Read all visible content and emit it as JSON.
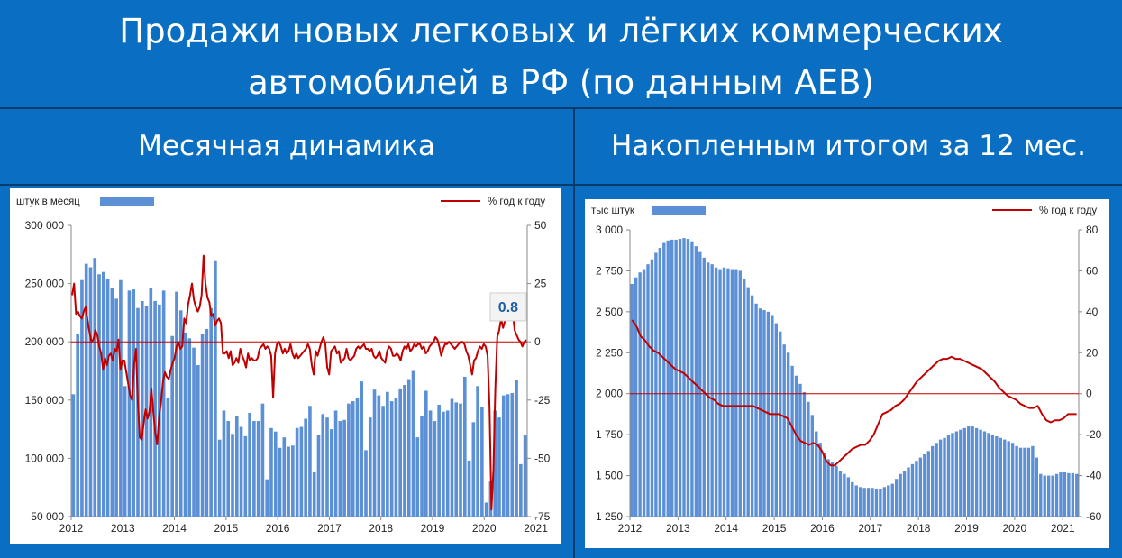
{
  "title": {
    "line1": "Продажи новых легковых и лёгких коммерческих",
    "line2": "автомобилей в РФ (по данным АЕВ)"
  },
  "left_subtitle": "Месячная динамика",
  "right_subtitle": "Накопленным итогом за 12 мес.",
  "colors": {
    "background": "#0a6fc2",
    "bar": "#5b8fd6",
    "line": "#c00000",
    "callout_text": "#1f5f9f"
  },
  "chart_data": [
    {
      "type": "bar",
      "bar_legend": "штук в месяц",
      "line_legend": "% год к году",
      "y_ticks": [
        "300 000",
        "250 000",
        "200 000",
        "150 000",
        "100 000",
        "50 000"
      ],
      "y2_ticks": [
        "50",
        "25",
        "0",
        "-25",
        "-50",
        "-75"
      ],
      "x_ticks": [
        "2012",
        "2013",
        "2014",
        "2015",
        "2016",
        "2017",
        "2018",
        "2019",
        "2020",
        "2021"
      ],
      "ylim": [
        50000,
        300000
      ],
      "y2lim": [
        -75,
        50
      ],
      "callout": "0.8",
      "bars": [
        155000,
        207000,
        253000,
        267000,
        264000,
        272000,
        258000,
        260000,
        254000,
        246000,
        237000,
        253000,
        162000,
        244000,
        245000,
        229000,
        235000,
        231000,
        246000,
        235000,
        232000,
        244000,
        152000,
        205000,
        243000,
        227000,
        208000,
        203000,
        195000,
        180000,
        207000,
        211000,
        229000,
        270000,
        116000,
        141000,
        132000,
        121000,
        136000,
        127000,
        119000,
        139000,
        132000,
        132000,
        147000,
        82000,
        126000,
        123000,
        109000,
        118000,
        110000,
        111000,
        126000,
        127000,
        134000,
        145000,
        88000,
        120000,
        138000,
        135000,
        125000,
        141000,
        132000,
        133000,
        147000,
        149000,
        152000,
        166000,
        107000,
        135000,
        159000,
        154000,
        145000,
        157000,
        149000,
        152000,
        160000,
        163000,
        168000,
        175000,
        118000,
        136000,
        158000,
        141000,
        132000,
        146000,
        140000,
        141000,
        151000,
        148000,
        147000,
        170000,
        98000,
        131000,
        162000,
        144000,
        62000,
        80000,
        141000,
        135000,
        154000,
        155000,
        156000,
        167000,
        95000,
        120000
      ],
      "line": [
        20,
        25,
        12,
        13,
        11,
        10,
        13,
        15,
        9,
        4,
        0,
        1,
        5,
        3,
        -2,
        -5,
        -12,
        -7,
        -10,
        -6,
        -5,
        -8,
        -3,
        -4,
        1,
        -12,
        -8,
        -8,
        -13,
        -18,
        -23,
        -25,
        -10,
        -3,
        -26,
        -41,
        -42,
        -35,
        -29,
        -33,
        -30,
        -20,
        -30,
        -39,
        -44,
        -32,
        -26,
        -17,
        -13,
        -15,
        -16,
        -12,
        -9,
        -7,
        -2,
        0,
        -3,
        -2,
        10,
        8,
        16,
        20,
        25,
        18,
        15,
        13,
        15,
        20,
        37,
        25,
        19,
        17,
        11,
        12,
        7,
        9,
        10,
        8,
        -5,
        -5,
        -4,
        -7,
        -4,
        -10,
        -9,
        -7,
        -9,
        -3,
        -6,
        -8,
        -11,
        -5,
        -8,
        -7,
        -8,
        -8,
        -7,
        -3,
        -2,
        -1,
        -3,
        -2,
        -3,
        -6,
        -24,
        -5,
        -1,
        0,
        -2,
        -5,
        -3,
        -5,
        -4,
        -1,
        -5,
        -7,
        -5,
        -7,
        -6,
        -5,
        -4,
        -3,
        -1,
        -3,
        -10,
        -14,
        -4,
        -6,
        -3,
        0,
        2,
        -1,
        -11,
        -14,
        -4,
        -3,
        -2,
        -5,
        -4,
        -9,
        -8,
        -7,
        -3,
        -7,
        -8,
        -7,
        -6,
        -3,
        -2,
        -3,
        -2,
        -1,
        -3,
        -3,
        -4,
        -3,
        -6,
        -7,
        -6,
        -4,
        -7,
        -8,
        -9,
        -4,
        -2,
        -3,
        -6,
        -6,
        -5,
        -6,
        -8,
        -4,
        -2,
        -3,
        -1,
        -4,
        -3,
        -1,
        -2,
        -1,
        -1,
        -3,
        -2,
        -5,
        -4,
        -2,
        -1,
        0,
        2,
        1,
        -2,
        -6,
        -3,
        -1,
        -1,
        0,
        -1,
        -2,
        -3,
        -2,
        -1,
        0,
        0,
        -1,
        -4,
        -6,
        -10,
        -14,
        -8,
        -7,
        -4,
        -2,
        -3,
        -1,
        -2,
        -6,
        -28,
        -72,
        -55,
        -20,
        2,
        5,
        10,
        6,
        9,
        14,
        13,
        12,
        13,
        5,
        3,
        1,
        0,
        -2,
        0,
        0.8
      ]
    },
    {
      "type": "bar",
      "bar_legend": "тыс штук",
      "line_legend": "% год к году",
      "y_ticks": [
        "3 000",
        "2 750",
        "2 500",
        "2 250",
        "2 000",
        "1 750",
        "1 500",
        "1 250"
      ],
      "y2_ticks": [
        "80",
        "60",
        "40",
        "20",
        "0",
        "-20",
        "-40",
        "-60"
      ],
      "x_ticks": [
        "2012",
        "2013",
        "2014",
        "2015",
        "2016",
        "2017",
        "2018",
        "2019",
        "2020",
        "2021"
      ],
      "ylim": [
        1250,
        3000
      ],
      "y2lim": [
        -60,
        80
      ],
      "bars": [
        2670,
        2710,
        2740,
        2760,
        2790,
        2820,
        2860,
        2890,
        2920,
        2935,
        2940,
        2940,
        2945,
        2950,
        2945,
        2930,
        2900,
        2870,
        2830,
        2800,
        2790,
        2770,
        2760,
        2770,
        2765,
        2760,
        2760,
        2750,
        2700,
        2650,
        2600,
        2550,
        2520,
        2510,
        2500,
        2480,
        2430,
        2380,
        2300,
        2250,
        2170,
        2110,
        2060,
        2010,
        1950,
        1870,
        1770,
        1700,
        1640,
        1600,
        1580,
        1560,
        1530,
        1510,
        1490,
        1460,
        1440,
        1430,
        1425,
        1425,
        1425,
        1420,
        1420,
        1430,
        1440,
        1450,
        1480,
        1510,
        1530,
        1550,
        1570,
        1590,
        1610,
        1630,
        1650,
        1680,
        1700,
        1720,
        1730,
        1750,
        1760,
        1770,
        1780,
        1790,
        1800,
        1800,
        1790,
        1780,
        1770,
        1760,
        1750,
        1740,
        1730,
        1720,
        1710,
        1700,
        1680,
        1670,
        1670,
        1670,
        1680,
        1610,
        1510,
        1500,
        1500,
        1500,
        1510,
        1520,
        1520,
        1515,
        1515,
        1510
      ],
      "line": [
        36,
        33,
        28,
        26,
        23,
        21,
        20,
        18,
        16,
        14,
        12,
        11,
        10,
        8,
        6,
        4,
        2,
        0,
        -2,
        -3,
        -5,
        -6,
        -6,
        -6,
        -6,
        -6,
        -6,
        -6,
        -6,
        -7,
        -8,
        -9,
        -10,
        -10,
        -10,
        -11,
        -12,
        -16,
        -20,
        -23,
        -24,
        -25,
        -24,
        -25,
        -28,
        -33,
        -35,
        -35,
        -33,
        -31,
        -29,
        -27,
        -26,
        -25,
        -25,
        -23,
        -20,
        -15,
        -10,
        -9,
        -8,
        -6,
        -5,
        -3,
        0,
        3,
        6,
        8,
        10,
        12,
        14,
        16,
        17,
        17,
        18,
        17,
        17,
        16,
        15,
        14,
        13,
        12,
        10,
        8,
        6,
        3,
        1,
        -1,
        -2,
        -3,
        -5,
        -6,
        -7,
        -7,
        -6,
        -10,
        -13,
        -14,
        -13,
        -13,
        -12,
        -10,
        -10,
        -10
      ]
    }
  ]
}
